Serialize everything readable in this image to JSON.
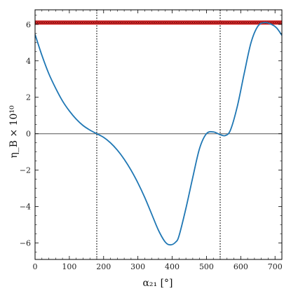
{
  "chart_data": {
    "type": "line",
    "xlabel": "α₂₁ [°]",
    "ylabel": "η_B × 10¹⁰",
    "xlim": [
      0,
      720
    ],
    "ylim": [
      -6.9,
      6.8
    ],
    "xticks": [
      0,
      100,
      200,
      300,
      400,
      500,
      600,
      700
    ],
    "yticks": [
      -6,
      -4,
      -2,
      0,
      2,
      4,
      6
    ],
    "grid": false,
    "series": [
      {
        "color": "#1f77b4",
        "x": [
          0,
          20,
          40,
          60,
          80,
          100,
          120,
          140,
          160,
          180,
          200,
          220,
          240,
          260,
          280,
          300,
          320,
          340,
          360,
          380,
          395,
          410,
          420,
          440,
          460,
          480,
          500,
          520,
          540,
          555,
          570,
          590,
          610,
          630,
          650,
          670,
          690,
          705,
          720
        ],
        "y": [
          5.45,
          4.3,
          3.3,
          2.5,
          1.8,
          1.25,
          0.8,
          0.45,
          0.2,
          0.0,
          -0.2,
          -0.5,
          -0.9,
          -1.4,
          -2.0,
          -2.7,
          -3.5,
          -4.4,
          -5.3,
          -5.95,
          -6.1,
          -5.95,
          -5.6,
          -4.1,
          -2.4,
          -0.8,
          0.0,
          0.1,
          -0.05,
          -0.1,
          0.2,
          1.5,
          3.3,
          5.0,
          5.9,
          6.1,
          6.0,
          5.8,
          5.4
        ]
      }
    ],
    "band": {
      "y": 6.1,
      "color": "#d62728"
    },
    "hlines": [
      0
    ],
    "vlines": [
      180,
      540
    ]
  }
}
